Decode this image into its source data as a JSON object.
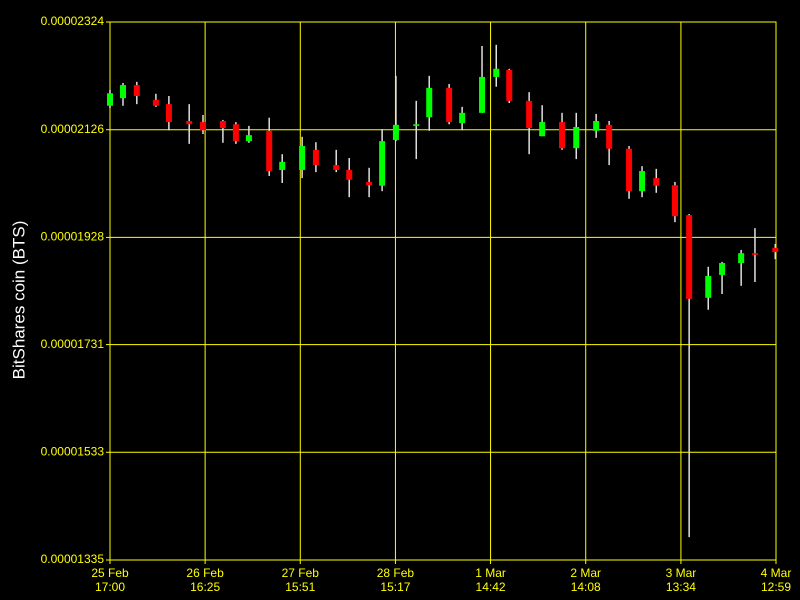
{
  "chart_data": {
    "type": "candlestick",
    "ylabel": "BitShares coin (BTS)",
    "ylim": [
      1.335e-05,
      2.324e-05
    ],
    "yticks": [
      1.335e-05,
      1.533e-05,
      1.731e-05,
      1.928e-05,
      2.126e-05,
      2.324e-05
    ],
    "xlim": [
      0,
      163.98
    ],
    "xticks": [
      {
        "value": 0,
        "label": "25 Feb 17:00"
      },
      {
        "value": 23.42,
        "label": "26 Feb 16:25"
      },
      {
        "value": 46.85,
        "label": "27 Feb 15:51"
      },
      {
        "value": 70.28,
        "label": "28 Feb 15:17"
      },
      {
        "value": 93.7,
        "label": "1 Mar 14:42"
      },
      {
        "value": 117.13,
        "label": "2 Mar 14:08"
      },
      {
        "value": 140.57,
        "label": "3 Mar 13:34"
      },
      {
        "value": 163.98,
        "label": "4 Mar 12:59"
      }
    ],
    "grid": true,
    "up_color": "#00ff00",
    "down_color": "#ff0000",
    "wick_color": "#e0e0e0",
    "grid_color": "#ffff00",
    "x": [
      0,
      3.2,
      6.6,
      11.3,
      14.5,
      19.5,
      22.9,
      27.8,
      31.0,
      34.2,
      39.2,
      42.4,
      47.3,
      50.7,
      55.7,
      58.9,
      63.8,
      67.0,
      70.4,
      75.4,
      78.6,
      83.5,
      86.7,
      91.6,
      95.1,
      98.3,
      103.2,
      106.4,
      111.3,
      114.8,
      119.7,
      122.9,
      127.8,
      131.0,
      134.5,
      139.1,
      142.6,
      147.3,
      150.7,
      155.4,
      158.8,
      163.8
    ],
    "open": [
      2.17e-05,
      2.184e-05,
      2.208e-05,
      2.181e-05,
      2.173e-05,
      2.142e-05,
      2.14e-05,
      2.142e-05,
      2.136e-05,
      2.105e-05,
      2.124e-05,
      2.052e-05,
      2.052e-05,
      2.089e-05,
      2.061e-05,
      2.052e-05,
      2.03e-05,
      2.023e-05,
      2.107e-05,
      2.133e-05,
      2.149e-05,
      2.203e-05,
      2.138e-05,
      2.157e-05,
      2.223e-05,
      2.236e-05,
      2.179e-05,
      2.114e-05,
      2.14e-05,
      2.092e-05,
      2.124e-05,
      2.135e-05,
      2.091e-05,
      2.013e-05,
      2.037e-05,
      2.024e-05,
      1.969e-05,
      1.817e-05,
      1.859e-05,
      1.881e-05,
      1.899e-05,
      1.909e-05
    ],
    "high": [
      2.199e-05,
      2.212e-05,
      2.214e-05,
      2.192e-05,
      2.188e-05,
      2.173e-05,
      2.153e-05,
      2.144e-05,
      2.14e-05,
      2.133e-05,
      2.148e-05,
      2.081e-05,
      2.113e-05,
      2.103e-05,
      2.089e-05,
      2.074e-05,
      2.056e-05,
      2.127e-05,
      2.225e-05,
      2.179e-05,
      2.225e-05,
      2.21e-05,
      2.168e-05,
      2.28e-05,
      2.282e-05,
      2.238e-05,
      2.195e-05,
      2.171e-05,
      2.157e-05,
      2.157e-05,
      2.155e-05,
      2.142e-05,
      2.096e-05,
      2.059e-05,
      2.054e-05,
      2.03e-05,
      1.971e-05,
      1.874e-05,
      1.883e-05,
      1.905e-05,
      1.945e-05,
      1.916e-05
    ],
    "low": [
      2.166e-05,
      2.17e-05,
      2.173e-05,
      2.168e-05,
      2.125e-05,
      2.1e-05,
      2.118e-05,
      2.102e-05,
      2.1e-05,
      2.102e-05,
      2.041e-05,
      2.028e-05,
      2.037e-05,
      2.048e-05,
      2.048e-05,
      2.002e-05,
      2.002e-05,
      2.013e-05,
      2.105e-05,
      2.072e-05,
      2.124e-05,
      2.136e-05,
      2.125e-05,
      2.157e-05,
      2.205e-05,
      2.175e-05,
      2.081e-05,
      2.114e-05,
      2.089e-05,
      2.072e-05,
      2.111e-05,
      2.061e-05,
      1.999e-05,
      2.002e-05,
      2.01e-05,
      1.956e-05,
      1.377e-05,
      1.795e-05,
      1.824e-05,
      1.839e-05,
      1.846e-05,
      1.888e-05
    ],
    "close": [
      2.193e-05,
      2.208e-05,
      2.188e-05,
      2.17e-05,
      2.14e-05,
      2.136e-05,
      2.125e-05,
      2.129e-05,
      2.105e-05,
      2.116e-05,
      2.05e-05,
      2.067e-05,
      2.096e-05,
      2.061e-05,
      2.052e-05,
      2.034e-05,
      2.024e-05,
      2.105e-05,
      2.135e-05,
      2.136e-05,
      2.203e-05,
      2.14e-05,
      2.157e-05,
      2.223e-05,
      2.238e-05,
      2.179e-05,
      2.129e-05,
      2.14e-05,
      2.092e-05,
      2.131e-05,
      2.142e-05,
      2.091e-05,
      2.013e-05,
      2.05e-05,
      2.023e-05,
      1.967e-05,
      1.815e-05,
      1.857e-05,
      1.881e-05,
      1.899e-05,
      1.896e-05,
      1.901e-05
    ]
  }
}
